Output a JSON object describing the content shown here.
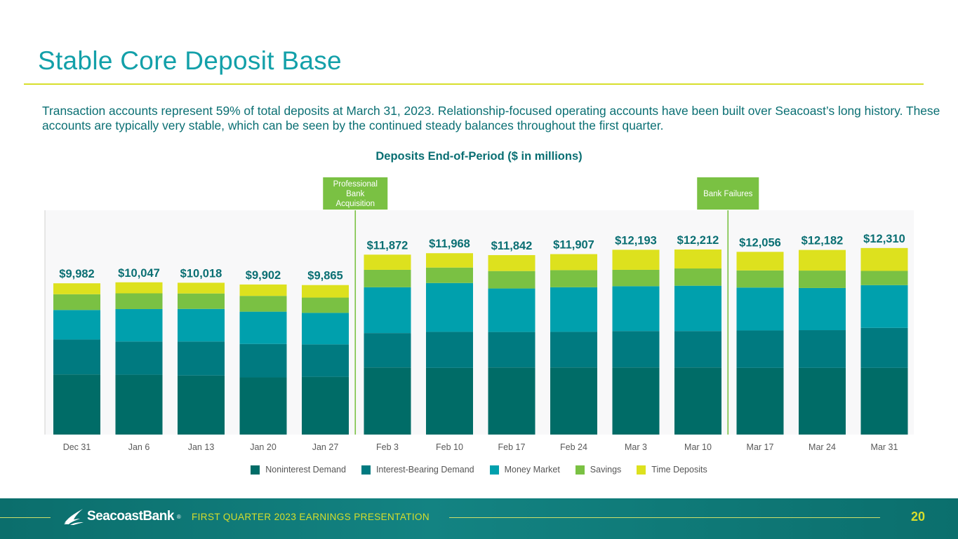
{
  "slide": {
    "title": "Stable Core Deposit Base",
    "intro": "Transaction accounts represent 59% of total deposits at March 31, 2023. Relationship-focused operating accounts have been built over Seacoast’s long history. These accounts are typically very stable, which can be seen by the continued steady balances throughout the first quarter."
  },
  "chart_data": {
    "type": "bar",
    "stacked": true,
    "title": "Deposits End-of-Period ($ in millions)",
    "categories": [
      "Dec 31",
      "Jan 6",
      "Jan 13",
      "Jan 20",
      "Jan 27",
      "Feb 3",
      "Feb 10",
      "Feb 17",
      "Feb 24",
      "Mar 3",
      "Mar 10",
      "Mar 17",
      "Mar 24",
      "Mar 31"
    ],
    "totals": [
      "$9,982",
      "$10,047",
      "$10,018",
      "$9,902",
      "$9,865",
      "$11,872",
      "$11,968",
      "$11,842",
      "$11,907",
      "$12,193",
      "$12,212",
      "$12,056",
      "$12,182",
      "$12,310"
    ],
    "total_values": [
      9982,
      10047,
      10018,
      9902,
      9865,
      11872,
      11968,
      11842,
      11907,
      12193,
      12212,
      12056,
      12182,
      12310
    ],
    "series": [
      {
        "name": "Noninterest Demand",
        "color": "#006C67",
        "values": [
          3970,
          3950,
          3900,
          3770,
          3810,
          4430,
          4400,
          4430,
          4430,
          4430,
          4430,
          4400,
          4400,
          4400
        ]
      },
      {
        "name": "Interest-Bearing Demand",
        "color": "#007A80",
        "values": [
          2300,
          2190,
          2240,
          2210,
          2140,
          2270,
          2380,
          2340,
          2350,
          2400,
          2400,
          2470,
          2490,
          2640
        ]
      },
      {
        "name": "Money Market",
        "color": "#00A0AD",
        "values": [
          1950,
          2140,
          2150,
          2130,
          2080,
          3020,
          3220,
          2870,
          2940,
          2960,
          2990,
          2830,
          2780,
          2820
        ]
      },
      {
        "name": "Savings",
        "color": "#7AC143",
        "values": [
          1040,
          1040,
          1020,
          1040,
          1010,
          1150,
          1020,
          1150,
          1130,
          1080,
          1140,
          1130,
          1150,
          940
        ]
      },
      {
        "name": "Time Deposits",
        "color": "#DDE11E",
        "values": [
          722,
          727,
          708,
          752,
          825,
          1002,
          948,
          1052,
          1057,
          1323,
          1252,
          1226,
          1362,
          1510
        ]
      }
    ],
    "annotations": [
      {
        "label": "Professional Bank Acquisition",
        "after": "Jan 27"
      },
      {
        "label": "Bank Failures",
        "after": "Mar 10"
      }
    ],
    "ylim": [
      0,
      14800
    ],
    "legend": "bottom"
  },
  "footer": {
    "brand": "SeacoastBank",
    "trademark": "®",
    "presentation": "FIRST QUARTER 2023 EARNINGS PRESENTATION",
    "page": "20"
  },
  "colors": {
    "title": "#13A0A9",
    "label": "#0A6F73",
    "accent": "#D7DE2C",
    "annotation_box": "#7AC143"
  }
}
